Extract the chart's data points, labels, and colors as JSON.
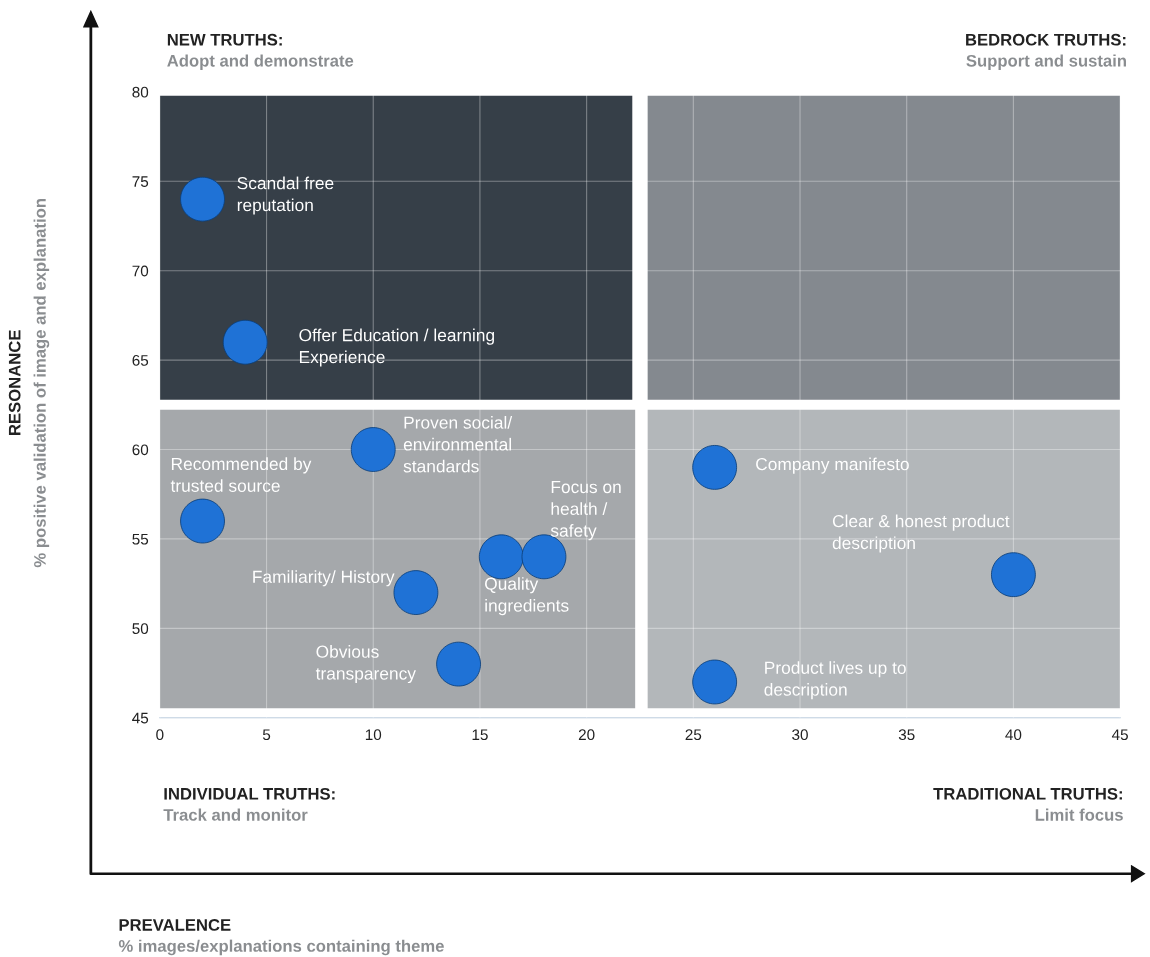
{
  "chart_data": {
    "type": "scatter",
    "annotations": [
      "NEW TRUTHS:",
      "Adopt and demonstrate",
      "BEDROCK TRUTHS:",
      "Support and sustain",
      "INDIVIDUAL TRUTHS:",
      "Track and monitor",
      "TRADITIONAL TRUTHS:",
      "Limit focus",
      "PREVALENCE",
      "% images/explanations containing theme",
      "RESONANCE",
      "% positive validation of image and explanation"
    ],
    "series": [
      {
        "name": "Scandal free\nreputation",
        "color": "#1f72d6",
        "x": [
          2
        ],
        "values": [
          74
        ]
      },
      {
        "name": "Offer Education / learning\nExperience",
        "color": "#1f72d6",
        "x": [
          4
        ],
        "values": [
          66
        ]
      },
      {
        "name": "Recommended by\ntrusted source",
        "color": "#1f72d6",
        "x": [
          2
        ],
        "values": [
          56
        ]
      },
      {
        "name": "Proven social/\nenvironmental\nstandards",
        "color": "#1f72d6",
        "x": [
          10
        ],
        "values": [
          60
        ]
      },
      {
        "name": "Familiarity/ History",
        "color": "#1f72d6",
        "x": [
          12
        ],
        "values": [
          52
        ]
      },
      {
        "name": "Obvious\ntransparency",
        "color": "#1f72d6",
        "x": [
          14
        ],
        "values": [
          48
        ]
      },
      {
        "name": "Quality\ningredients",
        "color": "#1f72d6",
        "x": [
          16
        ],
        "values": [
          54
        ]
      },
      {
        "name": "Focus on\nhealth /\nsafety",
        "color": "#1f72d6",
        "x": [
          18
        ],
        "values": [
          54
        ]
      },
      {
        "name": "Company manifesto",
        "color": "#1f72d6",
        "x": [
          26
        ],
        "values": [
          59
        ]
      },
      {
        "name": "Clear & honest product\ndescription",
        "color": "#1f72d6",
        "x": [
          40
        ],
        "values": [
          53
        ]
      },
      {
        "name": "Product lives up to\ndescription",
        "color": "#1f72d6",
        "x": [
          26
        ],
        "values": [
          47
        ]
      }
    ],
    "xlim": [
      0,
      45
    ],
    "xticks": [
      0,
      5,
      10,
      15,
      20,
      25,
      30,
      35,
      40,
      45
    ],
    "ylim": [
      45,
      80
    ],
    "yticks": [
      45,
      50,
      55,
      60,
      65,
      70,
      75,
      80
    ],
    "grid": true,
    "legend": false,
    "marker": "circle"
  }
}
